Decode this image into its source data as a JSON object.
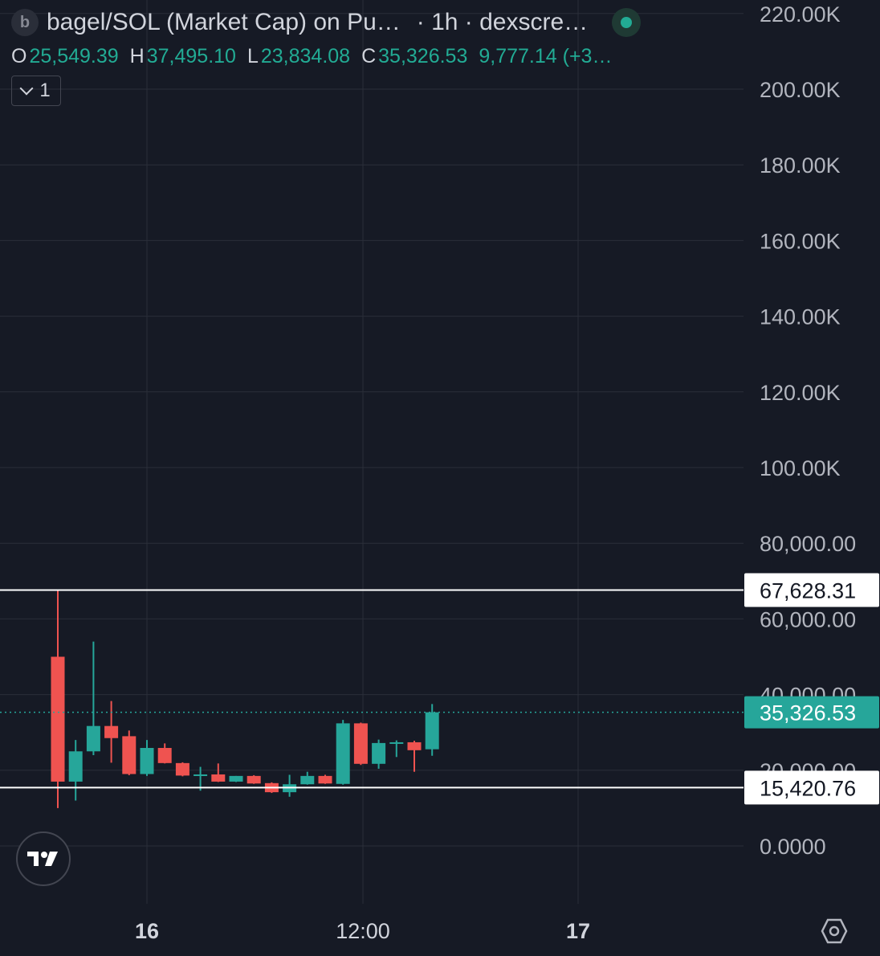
{
  "header": {
    "symbol_badge": "b",
    "title": "bagel/SOL (Market Cap) on Pu…",
    "interval_source": "· 1h · dexscre…",
    "status_color": "#22ab94",
    "ohlc": {
      "o_key": "O",
      "o_val": "25,549.39",
      "h_key": "H",
      "h_val": "37,495.10",
      "l_key": "L",
      "l_val": "23,834.08",
      "c_key": "C",
      "c_val": "35,326.53",
      "change": "9,777.14 (+3…"
    },
    "indicators_count": "1"
  },
  "icons": {
    "collapse": "chevron-down-icon",
    "logo": "tradingview-logo-icon",
    "settings": "settings-icon",
    "status": "status-dot-icon"
  },
  "colors": {
    "background": "#161a25",
    "up": "#26a69a",
    "down": "#ef5350",
    "grid": "#2a2e39",
    "text": "#b2b5be"
  },
  "chart_data": {
    "type": "candlestick",
    "y_range": [
      0,
      220000
    ],
    "y_ticks": [
      "220.00K",
      "200.00K",
      "180.00K",
      "160.00K",
      "140.00K",
      "120.00K",
      "100.00K",
      "80,000.00",
      "60,000.00",
      "40,000.00",
      "20,000.00",
      "0.0000"
    ],
    "y_tick_values": [
      220000,
      200000,
      180000,
      160000,
      140000,
      120000,
      100000,
      80000,
      60000,
      40000,
      20000,
      0
    ],
    "x_labels": [
      "16",
      "12:00",
      "17"
    ],
    "horizontal_lines": [
      {
        "value": 67628.31,
        "label": "67,628.31",
        "color": "#ffffff"
      },
      {
        "value": 15420.76,
        "label": "15,420.76",
        "color": "#ffffff"
      }
    ],
    "last_price": {
      "value": 35326.53,
      "label": "35,326.53",
      "color": "#26a69a"
    },
    "candles": [
      {
        "o": 50000,
        "h": 67628.31,
        "l": 10000,
        "c": 17000
      },
      {
        "o": 17000,
        "h": 28000,
        "l": 12000,
        "c": 25000
      },
      {
        "o": 25000,
        "h": 54000,
        "l": 24000,
        "c": 31700
      },
      {
        "o": 31700,
        "h": 38300,
        "l": 22000,
        "c": 28500
      },
      {
        "o": 29000,
        "h": 30500,
        "l": 18700,
        "c": 19000
      },
      {
        "o": 19000,
        "h": 28000,
        "l": 18500,
        "c": 25900
      },
      {
        "o": 25900,
        "h": 27100,
        "l": 21800,
        "c": 21900
      },
      {
        "o": 21900,
        "h": 22100,
        "l": 18400,
        "c": 18600
      },
      {
        "o": 18600,
        "h": 20900,
        "l": 14600,
        "c": 18900
      },
      {
        "o": 18900,
        "h": 21800,
        "l": 16900,
        "c": 17000
      },
      {
        "o": 17000,
        "h": 18500,
        "l": 16900,
        "c": 18500
      },
      {
        "o": 18500,
        "h": 18700,
        "l": 16400,
        "c": 16500
      },
      {
        "o": 16600,
        "h": 16800,
        "l": 14000,
        "c": 14200
      },
      {
        "o": 14200,
        "h": 18800,
        "l": 13000,
        "c": 16300
      },
      {
        "o": 16300,
        "h": 19600,
        "l": 16200,
        "c": 18500
      },
      {
        "o": 18500,
        "h": 18800,
        "l": 16400,
        "c": 16500
      },
      {
        "o": 16400,
        "h": 33300,
        "l": 16200,
        "c": 32400
      },
      {
        "o": 32400,
        "h": 32600,
        "l": 21400,
        "c": 21700
      },
      {
        "o": 21700,
        "h": 28100,
        "l": 20400,
        "c": 27200
      },
      {
        "o": 27000,
        "h": 27900,
        "l": 23500,
        "c": 27400
      },
      {
        "o": 27400,
        "h": 27800,
        "l": 19600,
        "c": 25300
      },
      {
        "o": 25549.39,
        "h": 37495.1,
        "l": 23834.08,
        "c": 35326.53
      }
    ]
  }
}
